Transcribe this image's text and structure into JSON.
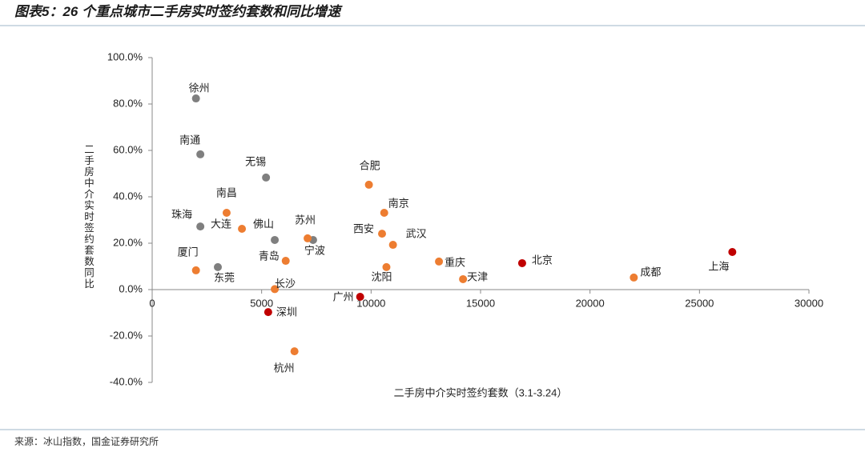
{
  "title": "图表5：26 个重点城市二手房实时签约套数和同比增速",
  "source": "来源：冰山指数，国金证券研究所",
  "chart_data": {
    "type": "scatter",
    "x_label": "二手房中介实时签约套数（3.1-3.24）",
    "y_label": "二手房中介实时签约套数同比",
    "xlim": [
      0,
      30000
    ],
    "xticks": [
      0,
      5000,
      10000,
      15000,
      20000,
      25000,
      30000
    ],
    "ylim": [
      -40,
      100
    ],
    "yticks": [
      {
        "value": 100,
        "label": "100.0%"
      },
      {
        "value": 80,
        "label": "80.0%"
      },
      {
        "value": 60,
        "label": "60.0%"
      },
      {
        "value": 40,
        "label": "40.0%"
      },
      {
        "value": 20,
        "label": "20.0%"
      },
      {
        "value": 0,
        "label": "0.0%"
      },
      {
        "value": -20,
        "label": "-20.0%"
      },
      {
        "value": -40,
        "label": "-40.0%"
      }
    ],
    "point_labels": [
      "徐州",
      "南通",
      "无锡",
      "珠海",
      "佛山",
      "宁波",
      "东莞",
      "南昌",
      "大连",
      "苏州",
      "厦门",
      "青岛",
      "长沙",
      "深圳",
      "杭州",
      "广州",
      "合肥",
      "南京",
      "西安",
      "武汉",
      "沈阳",
      "重庆",
      "天津",
      "北京",
      "成都",
      "上海"
    ],
    "x": [
      2000,
      2200,
      5200,
      2200,
      5600,
      7350,
      3000,
      3400,
      4100,
      7100,
      2000,
      6100,
      5600,
      5300,
      6500,
      9500,
      9900,
      10600,
      10500,
      11000,
      10700,
      13100,
      14200,
      16900,
      22000,
      26500
    ],
    "values": [
      82.4,
      58.3,
      48.3,
      27.2,
      21.4,
      21.4,
      9.7,
      33.1,
      26.2,
      22.1,
      8.3,
      12.4,
      0.2,
      -9.7,
      -26.6,
      -3.1,
      45.2,
      33.1,
      24.1,
      19.3,
      9.7,
      12.1,
      4.5,
      11.4,
      5.2,
      16.2
    ],
    "colors": [
      "#7f7f7f",
      "#7f7f7f",
      "#7f7f7f",
      "#7f7f7f",
      "#7f7f7f",
      "#7f7f7f",
      "#7f7f7f",
      "#ed7d31",
      "#ed7d31",
      "#ed7d31",
      "#ed7d31",
      "#ed7d31",
      "#ed7d31",
      "#c00000",
      "#ed7d31",
      "#c00000",
      "#ed7d31",
      "#ed7d31",
      "#ed7d31",
      "#ed7d31",
      "#ed7d31",
      "#ed7d31",
      "#ed7d31",
      "#c00000",
      "#ed7d31",
      "#c00000"
    ]
  }
}
